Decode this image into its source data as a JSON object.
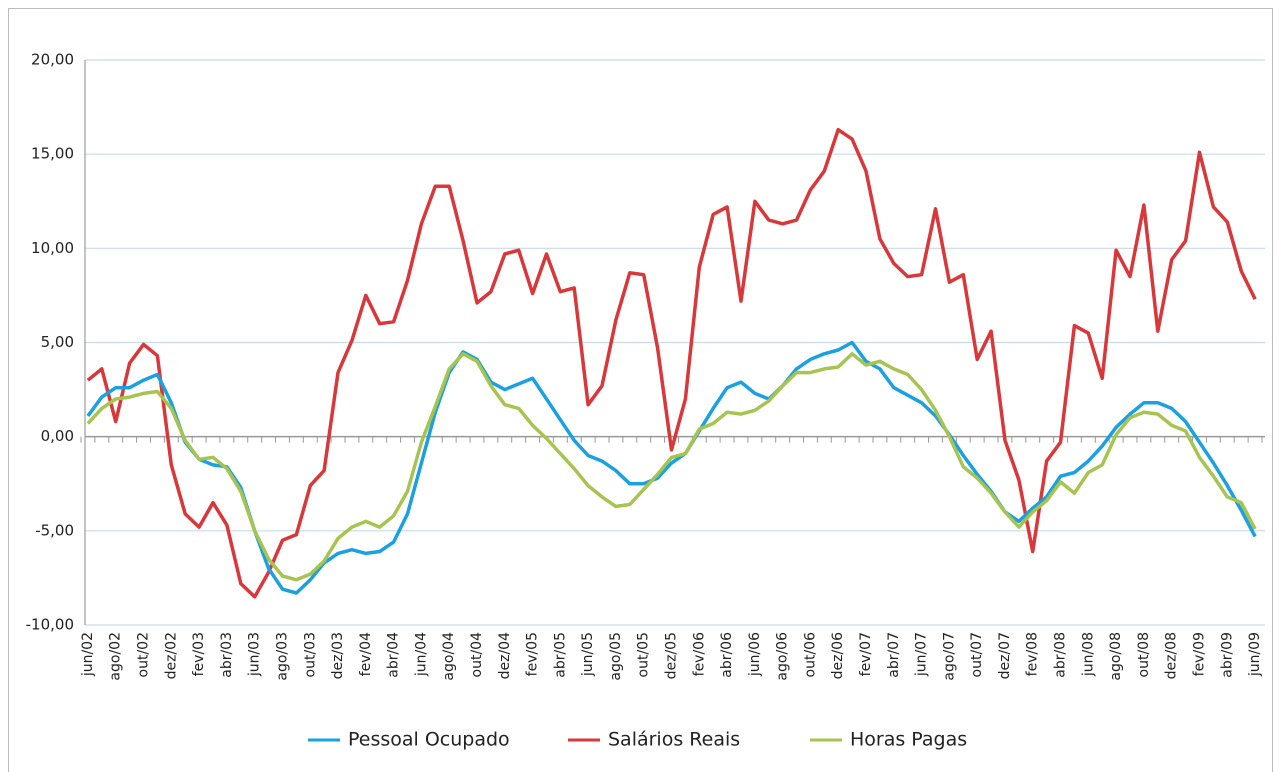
{
  "chart_data": {
    "type": "line",
    "categories": [
      "jun/02",
      null,
      "ago/02",
      null,
      "out/02",
      null,
      "dez/02",
      null,
      "fev/03",
      null,
      "abr/03",
      null,
      "jun/03",
      null,
      "ago/03",
      null,
      "out/03",
      null,
      "dez/03",
      null,
      "fev/04",
      null,
      "abr/04",
      null,
      "jun/04",
      null,
      "ago/04",
      null,
      "out/04",
      null,
      "dez/04",
      null,
      "fev/05",
      null,
      "abr/05",
      null,
      "jun/05",
      null,
      "ago/05",
      null,
      "out/05",
      null,
      "dez/05",
      null,
      "fev/06",
      null,
      "abr/06",
      null,
      "jun/06",
      null,
      "ago/06",
      null,
      "out/06",
      null,
      "dez/06",
      null,
      "fev/07",
      null,
      "abr/07",
      null,
      "jun/07",
      null,
      "ago/07",
      null,
      "out/07",
      null,
      "dez/07",
      null,
      "fev/08",
      null,
      "abr/08",
      null,
      "jun/08",
      null,
      "ago/08",
      null,
      "out/08",
      null,
      "dez/08",
      null,
      "fev/09",
      null,
      "abr/09",
      null,
      "jun/09"
    ],
    "series": [
      {
        "name": "Pessoal Ocupado",
        "color": "#1ba1e2",
        "values": [
          1.1,
          2.1,
          2.6,
          2.6,
          3.0,
          3.3,
          1.8,
          -0.3,
          -1.2,
          -1.5,
          -1.6,
          -2.7,
          -5.0,
          -7.0,
          -8.1,
          -8.3,
          -7.6,
          -6.7,
          -6.2,
          -6.0,
          -6.2,
          -6.1,
          -5.6,
          -4.1,
          -1.4,
          1.3,
          3.4,
          4.5,
          4.1,
          2.9,
          2.5,
          2.8,
          3.1,
          2.0,
          0.9,
          -0.2,
          -1.0,
          -1.3,
          -1.8,
          -2.5,
          -2.5,
          -2.2,
          -1.4,
          -0.9,
          0.3,
          1.5,
          2.6,
          2.9,
          2.3,
          2.0,
          2.7,
          3.6,
          4.1,
          4.4,
          4.6,
          5.0,
          4.0,
          3.6,
          2.6,
          2.2,
          1.8,
          1.1,
          0.1,
          -1.0,
          -2.0,
          -2.9,
          -4.0,
          -4.5,
          -3.8,
          -3.2,
          -2.1,
          -1.9,
          -1.3,
          -0.5,
          0.5,
          1.2,
          1.8,
          1.8,
          1.5,
          0.8,
          -0.3,
          -1.4,
          -2.6,
          -3.9,
          -5.3
        ]
      },
      {
        "name": "Salários Reais",
        "color": "#d9373a",
        "values": [
          3.0,
          3.6,
          0.8,
          3.9,
          4.9,
          4.3,
          -1.5,
          -4.1,
          -4.8,
          -3.5,
          -4.7,
          -7.8,
          -8.5,
          -7.2,
          -5.5,
          -5.2,
          -2.6,
          -1.8,
          3.4,
          5.1,
          7.5,
          6.0,
          6.1,
          8.3,
          11.3,
          13.3,
          13.3,
          10.4,
          7.1,
          7.7,
          9.7,
          9.9,
          7.6,
          9.7,
          7.7,
          7.9,
          1.7,
          2.7,
          6.2,
          8.7,
          8.6,
          4.7,
          -0.7,
          2.0,
          9.0,
          11.8,
          12.2,
          7.2,
          12.5,
          11.5,
          11.3,
          11.5,
          13.1,
          14.1,
          16.3,
          15.8,
          14.1,
          10.5,
          9.2,
          8.5,
          8.6,
          12.1,
          8.2,
          8.6,
          4.1,
          5.6,
          -0.2,
          -2.3,
          -6.1,
          -1.3,
          -0.3,
          5.9,
          5.5,
          3.1,
          9.9,
          8.5,
          12.3,
          5.6,
          9.4,
          10.4,
          15.1,
          12.2,
          11.4,
          8.8,
          7.3
        ]
      },
      {
        "name": "Horas Pagas",
        "color": "#a6c44f",
        "values": [
          0.7,
          1.5,
          2.0,
          2.1,
          2.3,
          2.4,
          1.5,
          -0.2,
          -1.2,
          -1.1,
          -1.7,
          -2.9,
          -5.0,
          -6.5,
          -7.4,
          -7.6,
          -7.3,
          -6.6,
          -5.4,
          -4.8,
          -4.5,
          -4.8,
          -4.2,
          -2.9,
          -0.3,
          1.6,
          3.6,
          4.4,
          4.0,
          2.7,
          1.7,
          1.5,
          0.6,
          -0.1,
          -0.9,
          -1.7,
          -2.6,
          -3.2,
          -3.7,
          -3.6,
          -2.8,
          -2.0,
          -1.1,
          -0.9,
          0.4,
          0.7,
          1.3,
          1.2,
          1.4,
          1.9,
          2.7,
          3.4,
          3.4,
          3.6,
          3.7,
          4.4,
          3.8,
          4.0,
          3.6,
          3.3,
          2.5,
          1.4,
          0.0,
          -1.6,
          -2.2,
          -3.0,
          -4.0,
          -4.8,
          -4.0,
          -3.4,
          -2.4,
          -3.0,
          -1.9,
          -1.5,
          0.1,
          1.0,
          1.3,
          1.2,
          0.6,
          0.3,
          -1.1,
          -2.1,
          -3.2,
          -3.5,
          -4.9
        ]
      }
    ],
    "ylim": [
      -10,
      20
    ],
    "yticks": [
      {
        "value": -10,
        "label": "-10,00"
      },
      {
        "value": -5,
        "label": "-5,00"
      },
      {
        "value": 0,
        "label": "0,00"
      },
      {
        "value": 5,
        "label": "5,00"
      },
      {
        "value": 10,
        "label": "10,00"
      },
      {
        "value": 15,
        "label": "15,00"
      },
      {
        "value": 20,
        "label": "20,00"
      }
    ],
    "grid": true
  }
}
